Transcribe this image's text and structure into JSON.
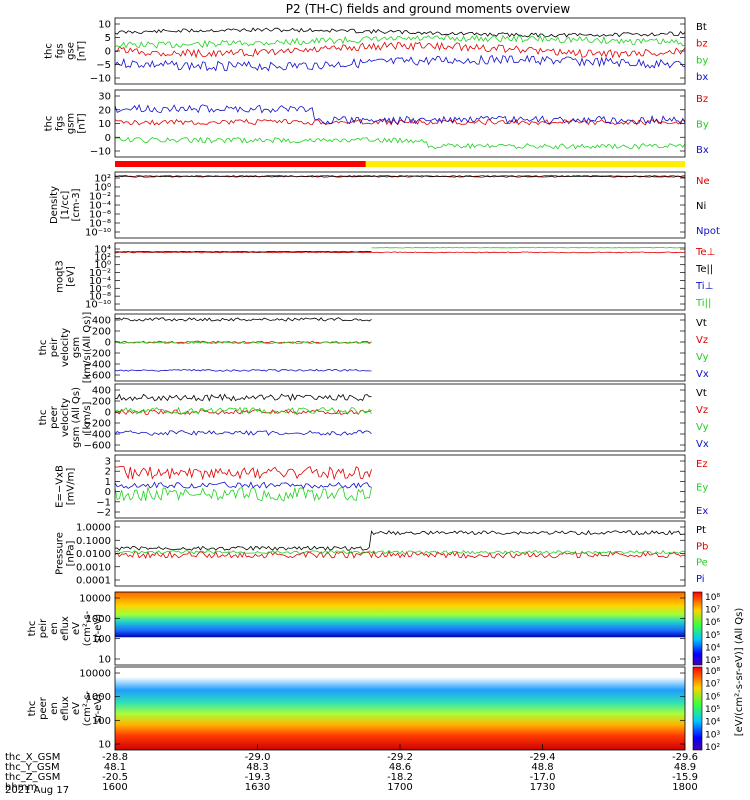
{
  "title": "P2 (TH-C) fields and ground moments overview",
  "date_label": "2021 Aug 17",
  "colors": {
    "black": "#000000",
    "red": "#e00000",
    "green": "#1fd21f",
    "blue": "#1010c8",
    "yellow": "#ffee00",
    "bar_red": "#ff0000"
  },
  "chart_data": {
    "type": "line",
    "time_axis": {
      "rows": [
        {
          "label": "thc_X_GSM",
          "values": [
            "-28.8",
            "-29.0",
            "-29.2",
            "-29.4",
            "-29.6"
          ]
        },
        {
          "label": "thc_Y_GSM",
          "values": [
            "48.1",
            "48.3",
            "48.6",
            "48.8",
            "48.9"
          ]
        },
        {
          "label": "thc_Z_GSM",
          "values": [
            "-20.5",
            "-19.3",
            "-18.2",
            "-17.0",
            "-15.9"
          ]
        },
        {
          "label": "hhmm",
          "values": [
            "1600",
            "1630",
            "1700",
            "1730",
            "1800"
          ]
        }
      ]
    },
    "panels": [
      {
        "ylabel": [
          "thc",
          "fgs",
          "gse",
          "[nT]"
        ],
        "yticks": [
          "10",
          "5",
          "0",
          "−5",
          "−10"
        ],
        "legend": [
          {
            "text": "Bt",
            "color": "#000000"
          },
          {
            "text": "bz",
            "color": "#e00000"
          },
          {
            "text": "by",
            "color": "#1fd21f"
          },
          {
            "text": "bx",
            "color": "#1010c8"
          }
        ]
      },
      {
        "ylabel": [
          "thc",
          "fgs",
          "gsm",
          "[nT]"
        ],
        "yticks": [
          "30",
          "20",
          "10",
          "0",
          "−10"
        ],
        "legend": [
          {
            "text": "Bz",
            "color": "#e00000"
          },
          {
            "text": "By",
            "color": "#1fd21f"
          },
          {
            "text": "Bx",
            "color": "#1010c8"
          }
        ]
      },
      {
        "ylabel": [
          "Density",
          "[1/cc]",
          "[cm-3]"
        ],
        "yticks": [
          "10²",
          "10⁰",
          "10⁻²",
          "10⁻⁴",
          "10⁻⁶",
          "10⁻⁸",
          "10⁻¹⁰"
        ],
        "legend": [
          {
            "text": "Ne",
            "color": "#e00000"
          },
          {
            "text": "Ni",
            "color": "#000000"
          },
          {
            "text": "Npot",
            "color": "#1010c8"
          }
        ]
      },
      {
        "ylabel": [
          "moqt3",
          "[eV]"
        ],
        "yticks": [
          "10⁴",
          "10²",
          "10⁰",
          "10⁻²",
          "10⁻⁴",
          "10⁻⁶",
          "10⁻⁸",
          "10⁻¹⁰"
        ],
        "legend": [
          {
            "text": "Te⊥",
            "color": "#e00000"
          },
          {
            "text": "Te||",
            "color": "#000000"
          },
          {
            "text": "Ti⊥",
            "color": "#1010c8"
          },
          {
            "text": "Ti||",
            "color": "#1fd21f"
          }
        ]
      },
      {
        "ylabel": [
          "thc",
          "peir",
          "velocity",
          "gsm",
          "[km/s (All Qs)]"
        ],
        "yticks": [
          "400",
          "200",
          "0",
          "−200",
          "−400",
          "−600"
        ],
        "legend": [
          {
            "text": "Vt",
            "color": "#000000"
          },
          {
            "text": "Vz",
            "color": "#e00000"
          },
          {
            "text": "Vy",
            "color": "#1fd21f"
          },
          {
            "text": "Vx",
            "color": "#1010c8"
          }
        ]
      },
      {
        "ylabel": [
          "thc",
          "peer",
          "velocity",
          "gsm (All Qs)",
          "[km/s]"
        ],
        "yticks": [
          "400",
          "200",
          "0",
          "−200",
          "−400",
          "−600"
        ],
        "legend": [
          {
            "text": "Vt",
            "color": "#000000"
          },
          {
            "text": "Vz",
            "color": "#e00000"
          },
          {
            "text": "Vy",
            "color": "#1fd21f"
          },
          {
            "text": "Vx",
            "color": "#1010c8"
          }
        ]
      },
      {
        "ylabel": [
          "E=−VxB",
          "[mV/m]"
        ],
        "yticks": [
          "3",
          "2",
          "1",
          "0",
          "−1",
          "−2"
        ],
        "legend": [
          {
            "text": "Ez",
            "color": "#e00000"
          },
          {
            "text": "Ey",
            "color": "#1fd21f"
          },
          {
            "text": "Ex",
            "color": "#1010c8"
          }
        ]
      },
      {
        "ylabel": [
          "Pressure",
          "[nPa]"
        ],
        "yticks": [
          "1.0000",
          "0.1000",
          "0.0100",
          "0.0010",
          "0.0001"
        ],
        "legend": [
          {
            "text": "Pt",
            "color": "#000000"
          },
          {
            "text": "Pb",
            "color": "#e00000"
          },
          {
            "text": "Pe",
            "color": "#1fd21f"
          },
          {
            "text": "Pi",
            "color": "#1010c8"
          }
        ]
      },
      {
        "ylabel": [
          "thc",
          "peir",
          "en",
          "eflux",
          "eV",
          "(cm²-s-",
          "sr-eV)"
        ],
        "yticks": [
          "10000",
          "1000",
          "100",
          "10"
        ]
      },
      {
        "ylabel": [
          "thc",
          "peer",
          "en",
          "eflux",
          "eV",
          "(cm²-s-",
          "sr-eV)"
        ],
        "yticks": [
          "10000",
          "1000",
          "100",
          "10"
        ]
      }
    ],
    "colorbar": {
      "label": "[eV/(cm²-s-sr-eV)] (All Qs)",
      "ticks_upper": [
        "10⁸",
        "10⁷",
        "10⁶",
        "10⁵",
        "10⁴",
        "10³"
      ],
      "ticks_lower": [
        "10⁸",
        "10⁷",
        "10⁶",
        "10⁵",
        "10⁴",
        "10³",
        "10²"
      ]
    }
  }
}
